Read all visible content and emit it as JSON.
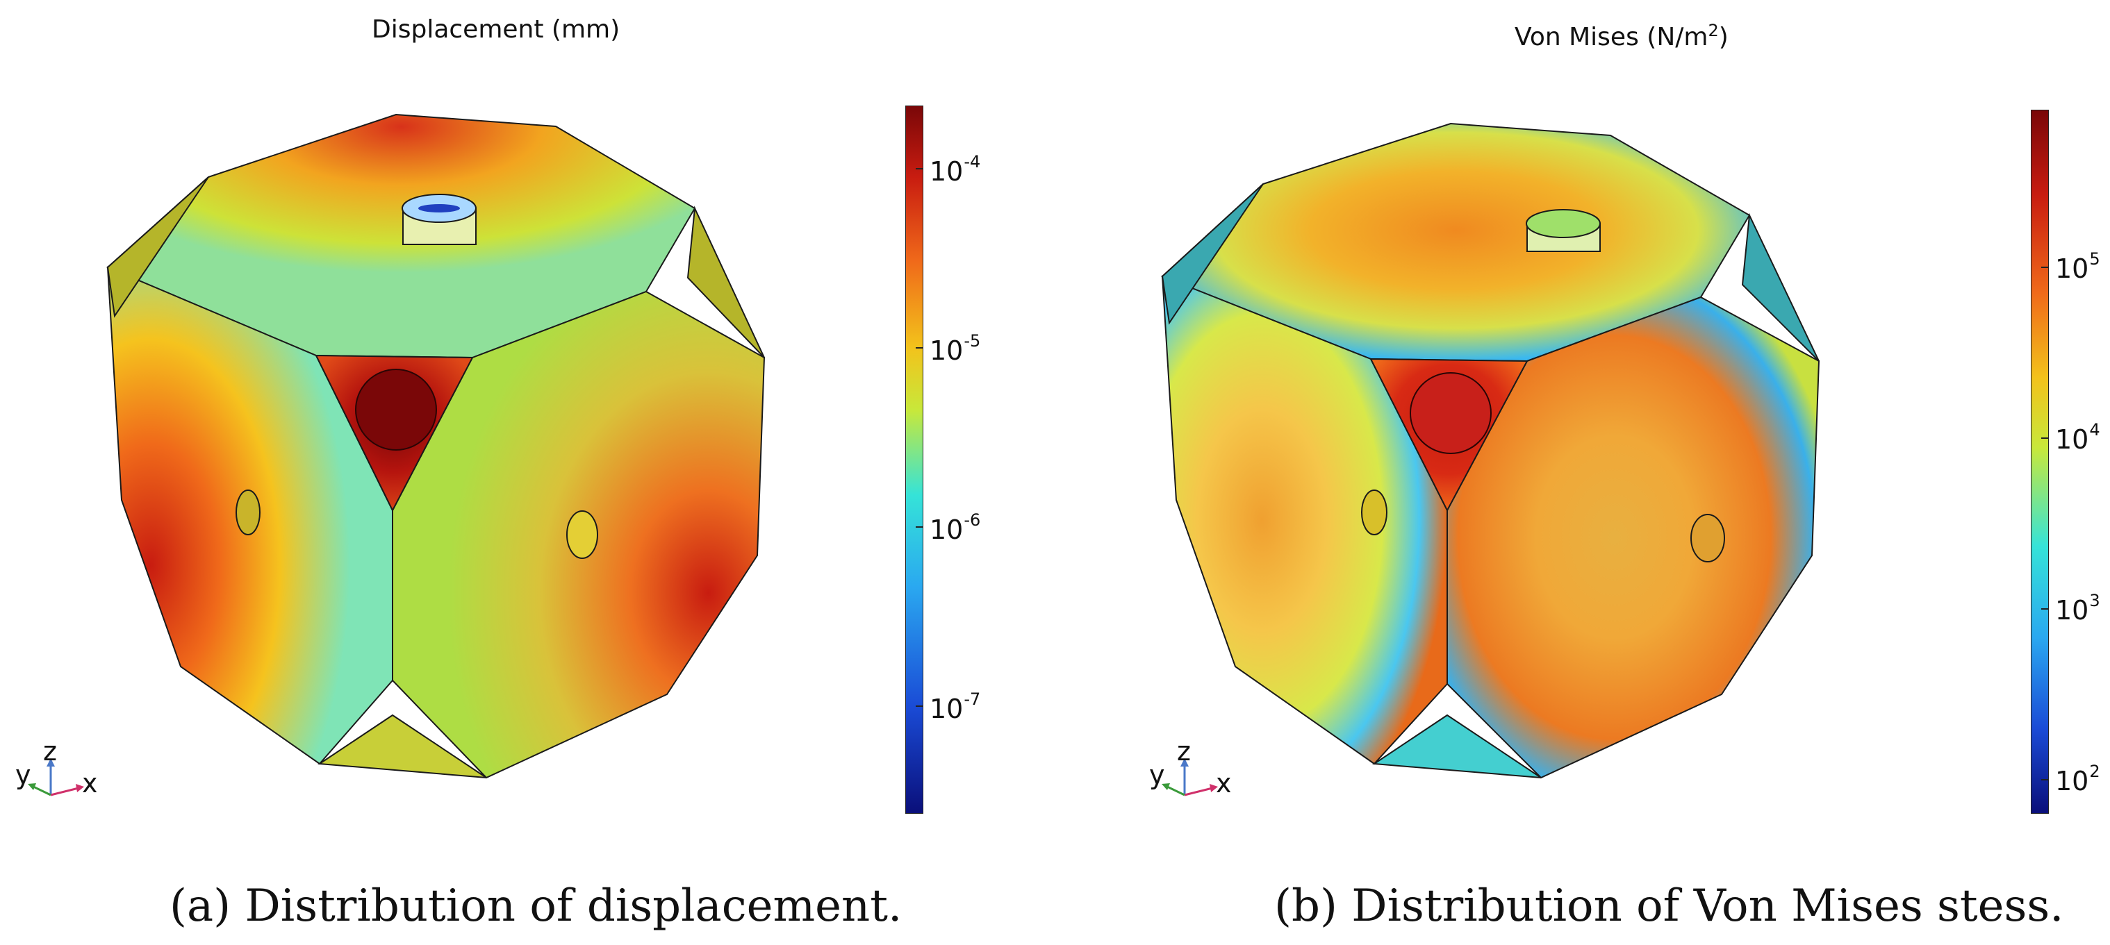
{
  "figure": {
    "panels": [
      {
        "id": "a",
        "plot_title": "Displacement (mm)",
        "caption_tag": "(a)",
        "caption_text": "Distribution of displacement.",
        "colorbar": {
          "scale": "log",
          "labels": [
            {
              "base": "10",
              "exp": "-4"
            },
            {
              "base": "10",
              "exp": "-5"
            },
            {
              "base": "10",
              "exp": "-6"
            },
            {
              "base": "10",
              "exp": "-7"
            }
          ]
        },
        "axes_triad": {
          "y": "y",
          "z": "z",
          "x": "x"
        }
      },
      {
        "id": "b",
        "plot_title_main": "Von Mises (N/m",
        "plot_title_sup": "2",
        "plot_title_end": ")",
        "caption_tag": "(b)",
        "caption_text": "Distribution of Von Mises stess.",
        "colorbar": {
          "scale": "log",
          "labels": [
            {
              "base": "10",
              "exp": "5"
            },
            {
              "base": "10",
              "exp": "4"
            },
            {
              "base": "10",
              "exp": "3"
            },
            {
              "base": "10",
              "exp": "2"
            }
          ]
        },
        "axes_triad": {
          "y": "y",
          "z": "z",
          "x": "x"
        }
      }
    ]
  },
  "colors": {
    "jet": [
      "#0a0f7a",
      "#1a4bd6",
      "#2aa8f0",
      "#35e3d8",
      "#c8e83a",
      "#f3c21b",
      "#f06a1a",
      "#c81c10",
      "#7a0708"
    ],
    "edge": "#1a1a1a"
  }
}
